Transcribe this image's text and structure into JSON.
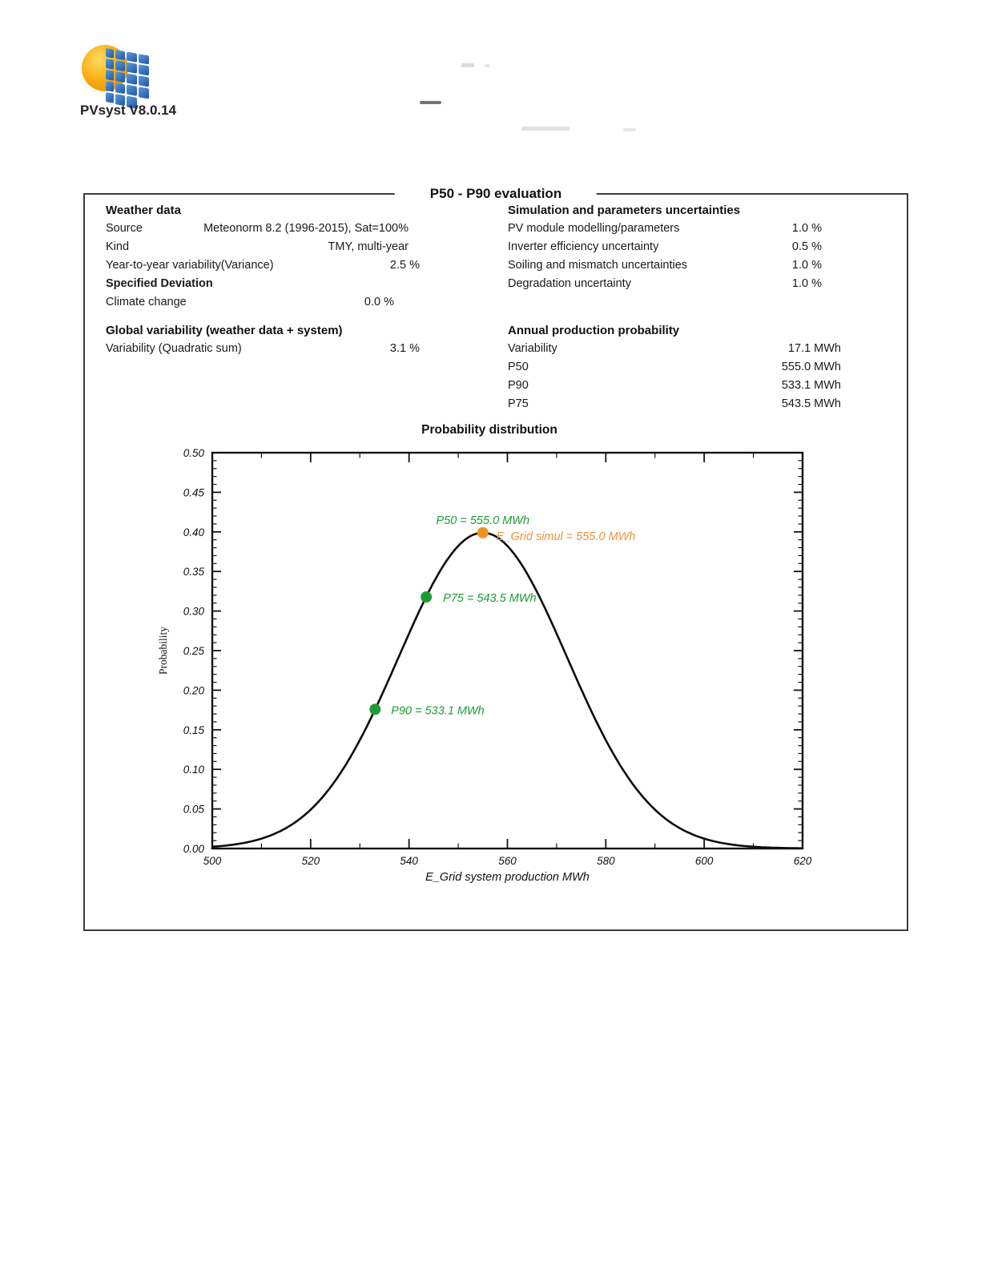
{
  "page": {
    "app_version": "PVsyst V8.0.14"
  },
  "report_box": {
    "title": "P50 - P90 evaluation",
    "weather": {
      "heading": "Weather data",
      "rows": [
        {
          "label": "Source",
          "value": "Meteonorm 8.2 (1996-2015), Sat=100%"
        },
        {
          "label": "Kind",
          "value": "TMY, multi-year"
        },
        {
          "label": "Year-to-year variability(Variance)",
          "value": "2.5 %"
        },
        {
          "label": "Specified Deviation",
          "value": ""
        },
        {
          "label": "Climate change",
          "value": "0.0 %"
        }
      ]
    },
    "global_variability": {
      "heading": "Global variability (weather data + system)",
      "rows": [
        {
          "label": "Variability (Quadratic sum)",
          "value": "3.1 %"
        }
      ]
    },
    "uncertainties": {
      "heading": "Simulation and parameters uncertainties",
      "rows": [
        {
          "label": "PV module modelling/parameters",
          "value": "1.0 %"
        },
        {
          "label": "Inverter efficiency uncertainty",
          "value": "0.5 %"
        },
        {
          "label": "Soiling and mismatch uncertainties",
          "value": "1.0 %"
        },
        {
          "label": "Degradation uncertainty",
          "value": "1.0 %"
        }
      ]
    },
    "production_probability": {
      "heading": "Annual production probability",
      "rows": [
        {
          "label": "Variability",
          "value": "17.1 MWh"
        },
        {
          "label": "P50",
          "value": "555.0 MWh"
        },
        {
          "label": "P90",
          "value": "533.1 MWh"
        },
        {
          "label": "P75",
          "value": "543.5 MWh"
        }
      ]
    }
  },
  "chart_data": {
    "type": "line",
    "title": "Probability distribution",
    "xlabel": "E_Grid system production MWh",
    "ylabel": "Probability",
    "xlim": [
      500,
      620
    ],
    "ylim": [
      0.0,
      0.5
    ],
    "x_tick_step": 20,
    "x_minor_tick_step": 10,
    "y_tick_step": 0.05,
    "y_minor_tick_step": 0.01,
    "grid": "off",
    "curve": {
      "shape": "gaussian",
      "mean_mwh": 555.0,
      "sigma_mwh": 17.1,
      "peak_probability": 0.3989,
      "color": "#0d0d0d"
    },
    "points": [
      {
        "id": "e-grid-simul",
        "x": 555.0,
        "y": 0.3989,
        "label": "E_Grid simul = 555.0 MWh",
        "color": "#f0911f",
        "label_color": "#ee9438"
      },
      {
        "id": "p75",
        "x": 543.5,
        "y": 0.3178,
        "label": "P75 = 543.5 MWh",
        "color": "#1e9b35",
        "label_color": "#1e9b35"
      },
      {
        "id": "p90",
        "x": 533.1,
        "y": 0.1758,
        "label": "P90 = 533.1 MWh",
        "color": "#1e9b35",
        "label_color": "#1e9b35"
      }
    ],
    "annotations": [
      {
        "id": "p50-label",
        "text": "P50 = 555.0 MWh",
        "color": "#1e9b35",
        "x": 555.0,
        "y": 0.3989,
        "placement": "above"
      }
    ]
  }
}
